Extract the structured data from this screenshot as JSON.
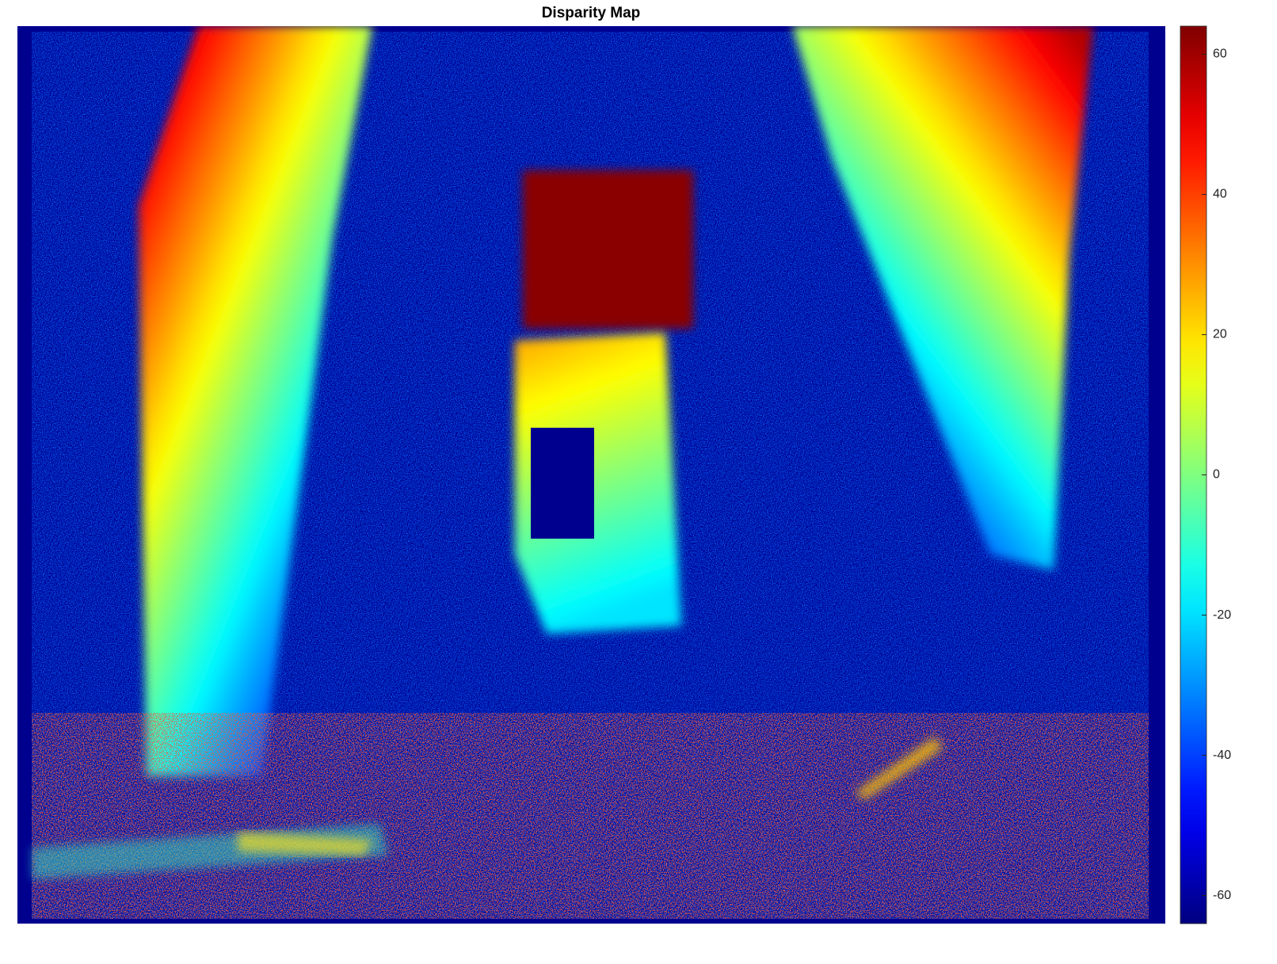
{
  "chart_data": {
    "type": "image",
    "title": "Disparity Map",
    "colormap": "jet",
    "clim": [
      -64,
      64
    ],
    "colorbar_ticks": [
      -60,
      -40,
      -20,
      0,
      20,
      40,
      60
    ]
  }
}
